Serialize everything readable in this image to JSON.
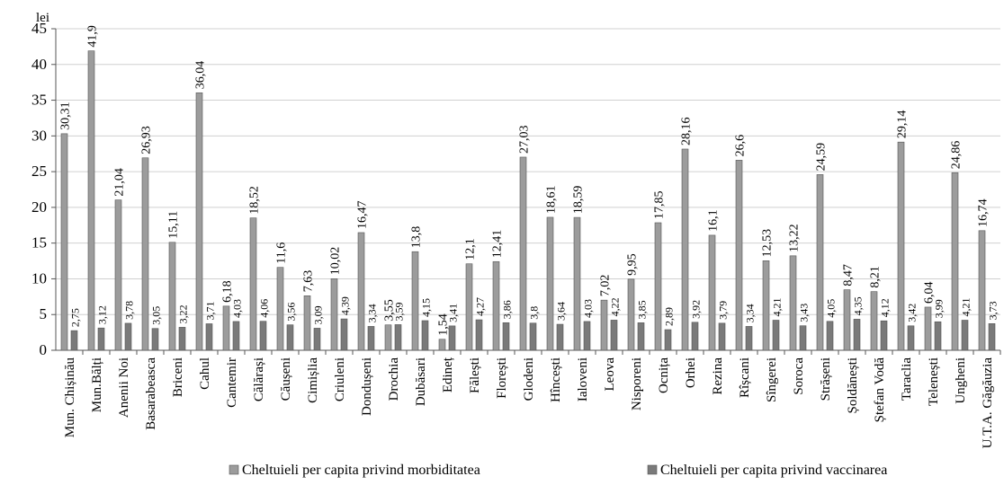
{
  "chart_data": {
    "type": "bar",
    "y_label": "lei",
    "categories": [
      "Mun. Chișinău",
      "Mun.Bălți",
      "Anenii Noi",
      "Basarabeasca",
      "Briceni",
      "Cahul",
      "Cantemir",
      "Călărași",
      "Căușeni",
      "Cimișlia",
      "Criuleni",
      "Dondușeni",
      "Drochia",
      "Dubăsari",
      "Edineț",
      "Fălești",
      "Florești",
      "Glodeni",
      "Hîncești",
      "Ialoveni",
      "Leova",
      "Nisporeni",
      "Ocnița",
      "Orhei",
      "Rezina",
      "Rîșcani",
      "Sîngerei",
      "Soroca",
      "Strășeni",
      "Șoldănești",
      "Ștefan Vodă",
      "Taraclia",
      "Telenești",
      "Ungheni",
      "U.T.A. Găgăuzia"
    ],
    "series": [
      {
        "name": "Cheltuieli per capita privind morbiditatea",
        "color": "#9c9c9c",
        "values": [
          30.31,
          41.9,
          21.04,
          26.93,
          15.11,
          36.04,
          6.18,
          18.52,
          11.6,
          7.63,
          10.02,
          16.47,
          3.55,
          13.8,
          1.54,
          12.1,
          12.41,
          27.03,
          18.61,
          18.59,
          7.02,
          9.95,
          17.85,
          28.16,
          16.1,
          26.6,
          12.53,
          13.22,
          24.59,
          8.47,
          8.21,
          29.14,
          6.04,
          24.86,
          16.74
        ],
        "value_labels": [
          "30,31",
          "41,9",
          "21,04",
          "26,93",
          "15,11",
          "36,04",
          "6,18",
          "18,52",
          "11,6",
          "7,63",
          "10,02",
          "16,47",
          "3,55",
          "13,8",
          "1,54",
          "12,1",
          "12,41",
          "27,03",
          "18,61",
          "18,59",
          "7,02",
          "9,95",
          "17,85",
          "28,16",
          "16,1",
          "26,6",
          "12,53",
          "13,22",
          "24,59",
          "8,47",
          "8,21",
          "29,14",
          "6,04",
          "24,86",
          "16,74"
        ]
      },
      {
        "name": "Cheltuieli per capita privind vaccinarea",
        "color": "#7a7a7a",
        "values": [
          2.75,
          3.12,
          3.78,
          3.05,
          3.22,
          3.71,
          4.03,
          4.06,
          3.56,
          3.09,
          4.39,
          3.34,
          3.59,
          4.15,
          3.41,
          4.27,
          3.86,
          3.8,
          3.64,
          4.03,
          4.22,
          3.85,
          2.89,
          3.92,
          3.79,
          3.34,
          4.21,
          3.43,
          4.05,
          4.35,
          4.12,
          3.42,
          3.99,
          4.21,
          3.73
        ],
        "value_labels": [
          "2,75",
          "3,12",
          "3,78",
          "3,05",
          "3,22",
          "3,71",
          "4,03",
          "4,06",
          "3,56",
          "3,09",
          "4,39",
          "3,34",
          "3,59",
          "4,15",
          "3,41",
          "4,27",
          "3,86",
          "3,8",
          "3,64",
          "4,03",
          "4,22",
          "3,85",
          "2,89",
          "3,92",
          "3,79",
          "3,34",
          "4,21",
          "3,43",
          "4,05",
          "4,35",
          "4,12",
          "3,42",
          "3,99",
          "4,21",
          "3,73"
        ]
      }
    ],
    "ylim": [
      0,
      45
    ],
    "yticks": [
      0,
      5,
      10,
      15,
      20,
      25,
      30,
      35,
      40,
      45
    ],
    "grid": true
  }
}
